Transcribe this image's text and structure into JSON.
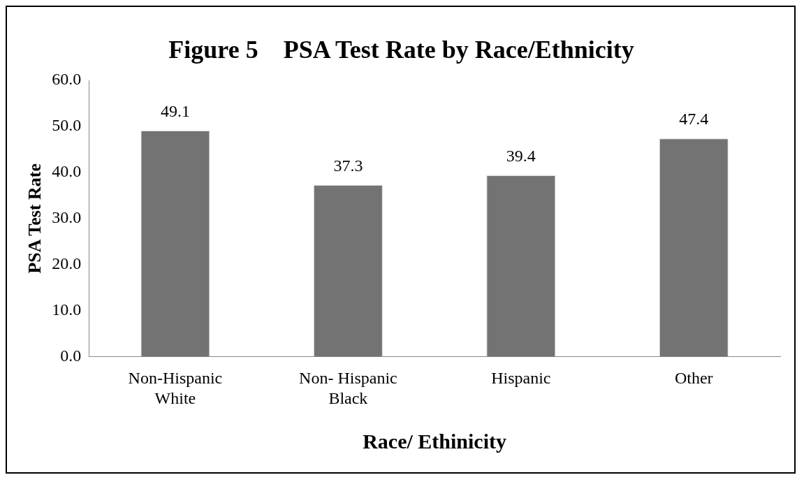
{
  "chart_data": {
    "type": "bar",
    "title": "Figure 5    PSA Test Rate by Race/Ethnicity",
    "xlabel": "Race/ Ethinicity",
    "ylabel": "PSA Test Rate",
    "categories": [
      "Non-Hispanic White",
      "Non- Hispanic Black",
      "Hispanic",
      "Other"
    ],
    "values": [
      49.1,
      37.3,
      39.4,
      47.4
    ],
    "color": "#737373",
    "ylim": [
      0,
      60
    ],
    "yticks": [
      {
        "value": 0,
        "label": "0.0"
      },
      {
        "value": 10,
        "label": "10.0"
      },
      {
        "value": 20,
        "label": "20.0"
      },
      {
        "value": 30,
        "label": "30.0"
      },
      {
        "value": 40,
        "label": "40.0"
      },
      {
        "value": 50,
        "label": "50.0"
      },
      {
        "value": 60,
        "label": "60.0"
      }
    ],
    "grid": false,
    "legend": false,
    "data_labels": true
  }
}
